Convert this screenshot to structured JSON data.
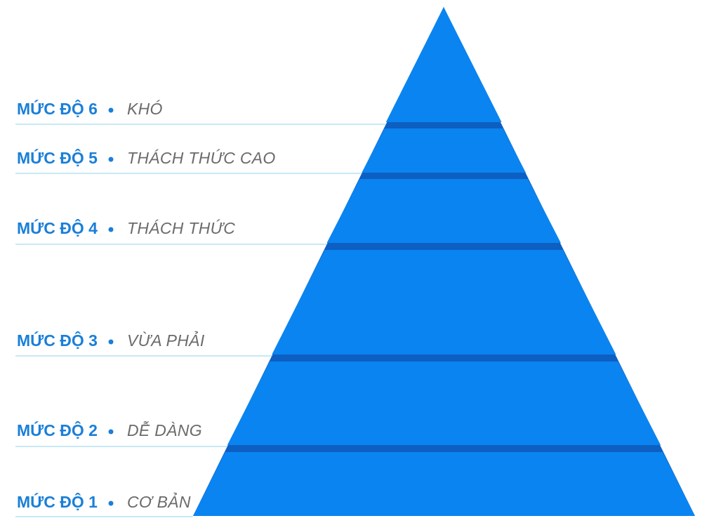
{
  "levels": [
    {
      "level": "MỨC ĐỘ 6",
      "description": "KHÓ"
    },
    {
      "level": "MỨC ĐỘ 5",
      "description": "THÁCH THỨC CAO"
    },
    {
      "level": "MỨC ĐỘ 4",
      "description": "THÁCH THỨC"
    },
    {
      "level": "MỨC ĐỘ 3",
      "description": "VỪA PHẢI"
    },
    {
      "level": "MỨC ĐỘ 2",
      "description": "DỄ DÀNG"
    },
    {
      "level": "MỨC ĐỘ 1",
      "description": "CƠ BẢN"
    }
  ]
}
